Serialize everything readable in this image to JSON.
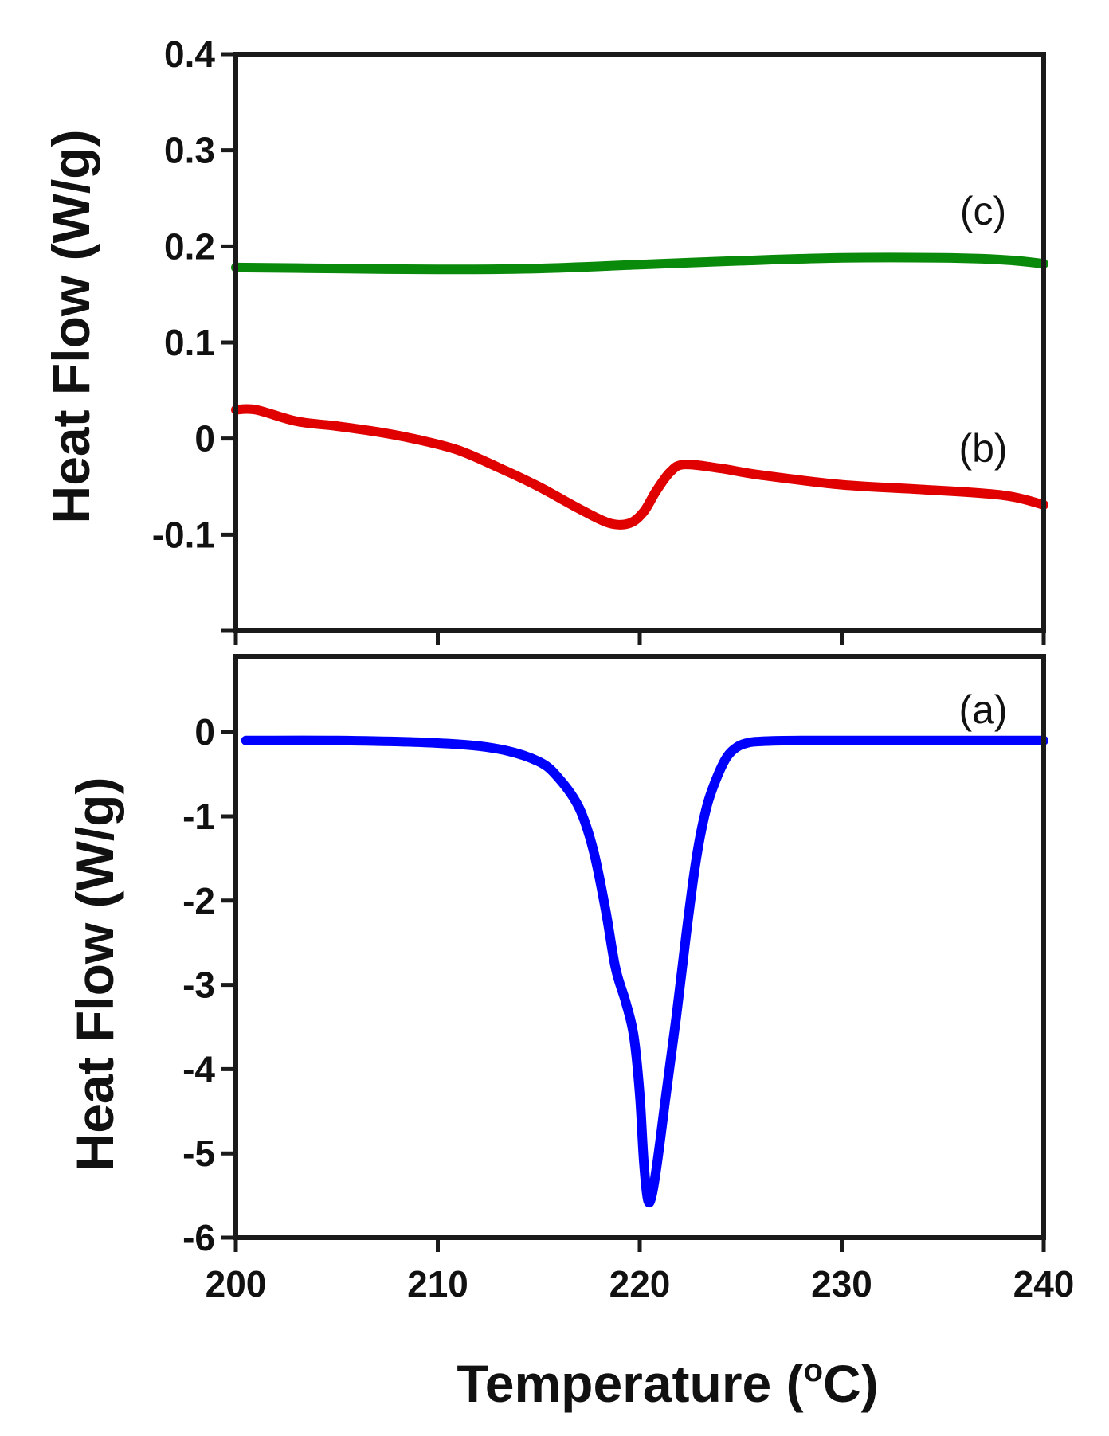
{
  "chart_data": [
    {
      "type": "line",
      "panel": "top",
      "ylabel": "Heat Flow (W/g)",
      "xlim": [
        200,
        240
      ],
      "ylim": [
        -0.2,
        0.4
      ],
      "yticks": [
        -0.1,
        0,
        0.1,
        0.2,
        0.3,
        0.4
      ],
      "ytick_labels": [
        "-0.1",
        "0",
        "0.1",
        "0.2",
        "0.3",
        "0.4"
      ],
      "xticks": [
        200,
        210,
        220,
        230,
        240
      ],
      "series": [
        {
          "name": "(c)",
          "color": "#0a8a0a",
          "x": [
            200,
            205,
            210,
            215,
            220,
            225,
            230,
            235,
            238,
            240
          ],
          "y": [
            0.178,
            0.177,
            0.176,
            0.177,
            0.181,
            0.185,
            0.188,
            0.188,
            0.186,
            0.182
          ]
        },
        {
          "name": "(b)",
          "color": "#e00000",
          "x": [
            200,
            201,
            203,
            205,
            207,
            209,
            211,
            213,
            215,
            217,
            218.5,
            219.5,
            220.2,
            220.8,
            221.5,
            222.2,
            224,
            226,
            230,
            234,
            238,
            240
          ],
          "y": [
            0.03,
            0.03,
            0.018,
            0.013,
            0.007,
            -0.001,
            -0.012,
            -0.03,
            -0.05,
            -0.073,
            -0.088,
            -0.088,
            -0.076,
            -0.055,
            -0.035,
            -0.027,
            -0.031,
            -0.038,
            -0.048,
            -0.053,
            -0.059,
            -0.069
          ]
        }
      ]
    },
    {
      "type": "line",
      "panel": "bottom",
      "xlabel": "Temperature (oC)",
      "ylabel": "Heat Flow (W/g)",
      "xlim": [
        200,
        240
      ],
      "ylim": [
        -6,
        0.9
      ],
      "yticks": [
        -6,
        -5,
        -4,
        -3,
        -2,
        -1,
        0
      ],
      "ytick_labels": [
        "-6",
        "-5",
        "-4",
        "-3",
        "-2",
        "-1",
        "0"
      ],
      "xticks": [
        200,
        210,
        220,
        230,
        240
      ],
      "xtick_labels": [
        "200",
        "210",
        "220",
        "230",
        "240"
      ],
      "series": [
        {
          "name": "(a)",
          "color": "#0000ff",
          "x": [
            200.5,
            205,
            210,
            213,
            215,
            216,
            217,
            217.7,
            218.3,
            218.8,
            219.3,
            219.7,
            220,
            220.2,
            220.4,
            220.6,
            220.9,
            221.3,
            221.8,
            222.3,
            222.8,
            223.3,
            223.8,
            224.3,
            224.8,
            225.3,
            226,
            228,
            232,
            236,
            240
          ],
          "y": [
            -0.1,
            -0.1,
            -0.13,
            -0.2,
            -0.35,
            -0.55,
            -0.9,
            -1.4,
            -2.1,
            -2.8,
            -3.2,
            -3.6,
            -4.3,
            -5.1,
            -5.55,
            -5.5,
            -5.05,
            -4.3,
            -3.4,
            -2.4,
            -1.5,
            -0.9,
            -0.55,
            -0.3,
            -0.18,
            -0.13,
            -0.11,
            -0.1,
            -0.1,
            -0.1,
            -0.1
          ]
        }
      ]
    }
  ],
  "labels": {
    "x_axis_title": "Temperature (",
    "x_axis_unit_superscript": "o",
    "x_axis_unit_letter": "C)"
  }
}
